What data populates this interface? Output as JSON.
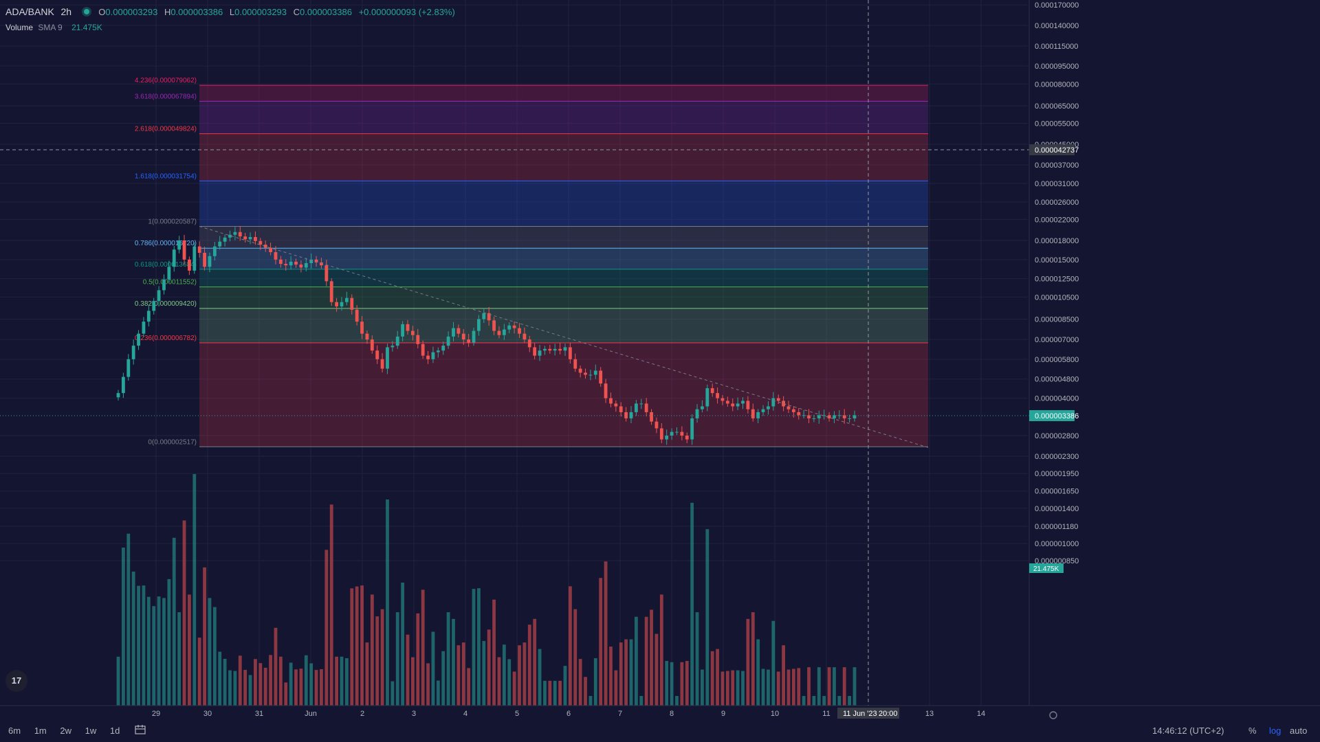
{
  "header": {
    "symbol": "ADA/BANK",
    "timeframe": "2h",
    "open_label": "O",
    "open": "0.000003293",
    "high_label": "H",
    "high": "0.000003386",
    "low_label": "L",
    "low": "0.000003293",
    "close_label": "C",
    "close": "0.000003386",
    "change": "+0.000000093 (+2.83%)"
  },
  "volume_legend": {
    "label": "Volume",
    "sub": "SMA 9",
    "value": "21.475K"
  },
  "bottom_bar": {
    "ranges": [
      "6m",
      "1m",
      "2w",
      "1w",
      "1d"
    ],
    "clock": "14:46:12 (UTC+2)",
    "percent": "%",
    "log": "log",
    "auto": "auto"
  },
  "colors": {
    "up": "#26a69a",
    "down": "#ef5350",
    "background": "#141631",
    "accent": "#2962ff"
  },
  "chart_data": {
    "type": "candlestick",
    "y_scale": "log",
    "y_tick_labels": [
      "0.000170000",
      "0.000140000",
      "0.000115000",
      "0.000095000",
      "0.000080000",
      "0.000065000",
      "0.000055000",
      "0.000045000",
      "0.000037000",
      "0.000031000",
      "0.000026000",
      "0.000022000",
      "0.000018000",
      "0.000015000",
      "0.000012500",
      "0.000010500",
      "0.000008500",
      "0.000007000",
      "0.000005800",
      "0.000004800",
      "0.000004000",
      "0.000002800",
      "0.000002300",
      "0.000001950",
      "0.000001650",
      "0.000001400",
      "0.000001180",
      "0.000001000",
      "0.000000850"
    ],
    "x_tick_labels": [
      "29",
      "30",
      "31",
      "Jun",
      "2",
      "3",
      "4",
      "5",
      "6",
      "7",
      "8",
      "9",
      "10",
      "11",
      "13",
      "14"
    ],
    "crosshair_date_label": "11 Jun '23",
    "crosshair_time_label": "20:00",
    "crosshair_price_label": "0.000042737",
    "last_price_label": "0.000003386",
    "volume_axis_label": "21.475K",
    "fib_levels": [
      {
        "label": "4.236(0.000079062)",
        "ratio": 4.236,
        "color": "#e91e63"
      },
      {
        "label": "3.618(0.000067894)",
        "ratio": 3.618,
        "color": "#9c27b0"
      },
      {
        "label": "2.618(0.000049824)",
        "ratio": 2.618,
        "color": "#f23645"
      },
      {
        "label": "1.618(0.000031754)",
        "ratio": 1.618,
        "color": "#2962ff"
      },
      {
        "label": "1(0.000020587)",
        "ratio": 1,
        "color": "#787b86"
      },
      {
        "label": "0.786(0.000016720)",
        "ratio": 0.786,
        "color": "#64b5f6"
      },
      {
        "label": "0.618(0.000013684)",
        "ratio": 0.618,
        "color": "#089981"
      },
      {
        "label": "0.5(0.000011552)",
        "ratio": 0.5,
        "color": "#4caf50"
      },
      {
        "label": "0.382(0.000009420)",
        "ratio": 0.382,
        "color": "#81c784"
      },
      {
        "label": "0.236(0.000006782)",
        "ratio": 0.236,
        "color": "#f23645"
      },
      {
        "label": "0(0.000002517)",
        "ratio": 0,
        "color": "#787b86"
      }
    ],
    "trendline": {
      "from": [
        0.0,
        2.06e-05
      ],
      "to": [
        1.0,
        2.5e-06
      ]
    },
    "ohlc_closes": [
      4.2e-06,
      4.9e-06,
      5.8e-06,
      6.6e-06,
      7.4e-06,
      8.3e-06,
      9.2e-06,
      1.01e-05,
      1.12e-05,
      1.24e-05,
      1.4e-05,
      1.65e-05,
      1.8e-05,
      1.5e-05,
      1.35e-05,
      1.7e-05,
      1.6e-05,
      1.4e-05,
      1.55e-05,
      1.7e-05,
      1.78e-05,
      1.85e-05,
      1.9e-05,
      1.95e-05,
      1.87e-05,
      1.82e-05,
      1.86e-05,
      1.79e-05,
      1.73e-05,
      1.68e-05,
      1.61e-05,
      1.5e-05,
      1.44e-05,
      1.42e-05,
      1.47e-05,
      1.43e-05,
      1.39e-05,
      1.45e-05,
      1.5e-05,
      1.46e-05,
      1.42e-05,
      1.22e-05,
      1e-05,
      9.6e-06,
      1e-05,
      1.04e-05,
      9.3e-06,
      8.3e-06,
      7.4e-06,
      7e-06,
      6.3e-06,
      5.8e-06,
      5.3e-06,
      6.5e-06,
      6.6e-06,
      7.2e-06,
      8.1e-06,
      7.6e-06,
      7.3e-06,
      6.7e-06,
      6e-06,
      5.8e-06,
      6.2e-06,
      6.3e-06,
      6.6e-06,
      7.2e-06,
      7.8e-06,
      7.4e-06,
      7e-06,
      6.8e-06,
      7.6e-06,
      8.5e-06,
      9e-06,
      8.4e-06,
      7.6e-06,
      7.3e-06,
      7.7e-06,
      8e-06,
      7.8e-06,
      7.4e-06,
      7e-06,
      6.5e-06,
      6e-06,
      6.3e-06,
      6.4e-06,
      6.3e-06,
      6.4e-06,
      6.3e-06,
      6.5e-06,
      5.8e-06,
      5.3e-06,
      5.1e-06,
      5e-06,
      5e-06,
      5.2e-06,
      4.6e-06,
      4e-06,
      3.8e-06,
      3.7e-06,
      3.5e-06,
      3.3e-06,
      3.5e-06,
      3.8e-06,
      3.8e-06,
      3.5e-06,
      3.2e-06,
      3e-06,
      2.7e-06,
      2.8e-06,
      2.9e-06,
      2.9e-06,
      2.8e-06,
      2.7e-06,
      3.3e-06,
      3.6e-06,
      3.7e-06,
      4.4e-06,
      4.2e-06,
      4e-06,
      3.9e-06,
      3.8e-06,
      3.7e-06,
      3.8e-06,
      3.9e-06,
      3.6e-06,
      3.3e-06,
      3.5e-06,
      3.6e-06,
      3.7e-06,
      4e-06,
      3.9e-06,
      3.7e-06,
      3.6e-06,
      3.5e-06,
      3.4e-06,
      3.4e-06,
      3.3e-06,
      3.3e-06,
      3.4e-06,
      3.4e-06,
      3.3e-06,
      3.4e-06,
      3.4e-06,
      3.3e-06,
      3.3e-06,
      3.4e-06
    ]
  }
}
